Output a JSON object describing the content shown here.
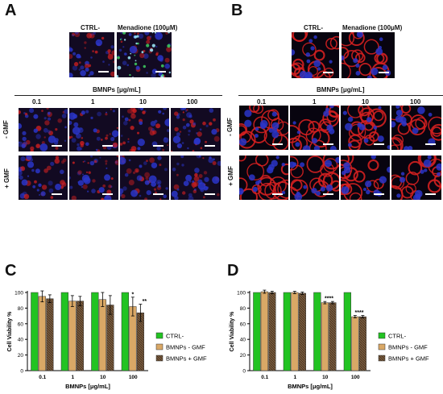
{
  "panels": {
    "A": {
      "letter": "A",
      "controls": [
        "CTRL-",
        "Menadione (100μM)"
      ],
      "group_title": "BMNPs [μg/mL]",
      "concentrations": [
        "0.1",
        "1",
        "10",
        "100"
      ],
      "row_labels": [
        "- GMF",
        "+ GMF"
      ]
    },
    "B": {
      "letter": "B",
      "controls": [
        "CTRL-",
        "Menadione (100μM)"
      ],
      "group_title": "BMNPs [μg/mL]",
      "concentrations": [
        "0.1",
        "1",
        "10",
        "100"
      ],
      "row_labels": [
        "- GMF",
        "+ GMF"
      ]
    },
    "C": {
      "letter": "C"
    },
    "D": {
      "letter": "D"
    }
  },
  "colors": {
    "ctrl": "#22c322",
    "minus_gmf": "#d9a866",
    "plus_gmf": "#7a5c3e",
    "micro_red": "#d42020",
    "micro_blue": "#2a35c8",
    "micro_green": "#40d060"
  },
  "chart_data": [
    {
      "type": "bar",
      "ylabel": "Cell Viability %",
      "xlabel": "BMNPs [μg/mL]",
      "categories": [
        "0.1",
        "1",
        "10",
        "100"
      ],
      "ylim": [
        0,
        100
      ],
      "yticks": [
        "0",
        "20",
        "40",
        "60",
        "80",
        "100"
      ],
      "series": [
        {
          "name": "CTRL-",
          "values": [
            100,
            100,
            100,
            100
          ],
          "errors": [
            0,
            0,
            0,
            0
          ]
        },
        {
          "name": "BMNPs - GMF",
          "values": [
            95,
            89,
            91,
            82
          ],
          "errors": [
            7,
            7,
            9,
            12
          ]
        },
        {
          "name": "BMNPs + GMF",
          "values": [
            92,
            89,
            84,
            74
          ],
          "errors": [
            5,
            6,
            12,
            11
          ]
        }
      ],
      "annotations": [
        {
          "category": "100",
          "series": "BMNPs - GMF",
          "text": "*"
        },
        {
          "category": "100",
          "series": "BMNPs + GMF",
          "text": "**"
        }
      ],
      "legend": "right"
    },
    {
      "type": "bar",
      "ylabel": "Cell Viability %",
      "xlabel": "BMNPs [μg/mL]",
      "categories": [
        "0.1",
        "1",
        "10",
        "100"
      ],
      "ylim": [
        0,
        100
      ],
      "yticks": [
        "0",
        "20",
        "40",
        "60",
        "80",
        "100"
      ],
      "series": [
        {
          "name": "CTRL-",
          "values": [
            100,
            100,
            100,
            100
          ],
          "errors": [
            0,
            0,
            0,
            0
          ]
        },
        {
          "name": "BMNPs - GMF",
          "values": [
            101,
            100,
            87,
            69
          ],
          "errors": [
            2,
            1.5,
            1.5,
            1.5
          ]
        },
        {
          "name": "BMNPs + GMF",
          "values": [
            100,
            99,
            87,
            69
          ],
          "errors": [
            1.5,
            1.5,
            1.5,
            1.5
          ]
        }
      ],
      "annotations": [
        {
          "category": "10",
          "series": "BMNPs - GMF",
          "text": "****"
        },
        {
          "category": "100",
          "series": "BMNPs - GMF",
          "text": "****"
        }
      ],
      "legend": "right"
    }
  ]
}
